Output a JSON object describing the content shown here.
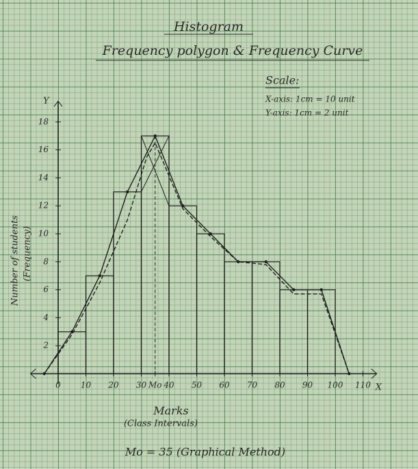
{
  "chart_data": {
    "type": "histogram",
    "title": "Histogram",
    "subtitle": "Frequency polygon & Frequency Curve",
    "scale_title": "Scale:",
    "scale_x": "X-axis: 1cm = 10 unit",
    "scale_y": "Y-axis: 1cm = 2 unit",
    "xlabel": "Marks",
    "xlabel_sub": "(Class Intervals)",
    "ylabel": "Number of students",
    "ylabel_sub": "(Frequency)",
    "x_axis_letter": "X",
    "y_axis_letter": "Y",
    "note": "Mo = 35 (Graphical Method)",
    "bins": [
      0,
      10,
      20,
      30,
      40,
      50,
      60,
      70,
      80,
      90,
      100
    ],
    "counts": [
      3,
      7,
      13,
      17,
      12,
      10,
      8,
      8,
      6,
      6
    ],
    "polygon": {
      "x": [
        -5,
        5,
        15,
        25,
        35,
        45,
        55,
        65,
        75,
        85,
        95,
        105
      ],
      "values": [
        0,
        3,
        7,
        13,
        17,
        12,
        10,
        8,
        8,
        6,
        6,
        0
      ]
    },
    "curve": {
      "x": [
        -5,
        5,
        15,
        25,
        32,
        35,
        45,
        55,
        65,
        75,
        85,
        95,
        105
      ],
      "values": [
        0,
        2.8,
        6.5,
        11,
        15.5,
        16.5,
        11.8,
        9.8,
        8,
        7.8,
        5.7,
        5.7,
        0
      ]
    },
    "mode": 35,
    "xlim": [
      -10,
      115
    ],
    "ylim": [
      0,
      19
    ],
    "xticks": [
      0,
      10,
      20,
      30,
      {
        "value": 35,
        "label": "Mo"
      },
      40,
      50,
      60,
      70,
      80,
      90,
      100,
      110
    ],
    "yticks": [
      2,
      4,
      6,
      8,
      10,
      12,
      14,
      16,
      18
    ],
    "color": "#1f1f1f"
  }
}
